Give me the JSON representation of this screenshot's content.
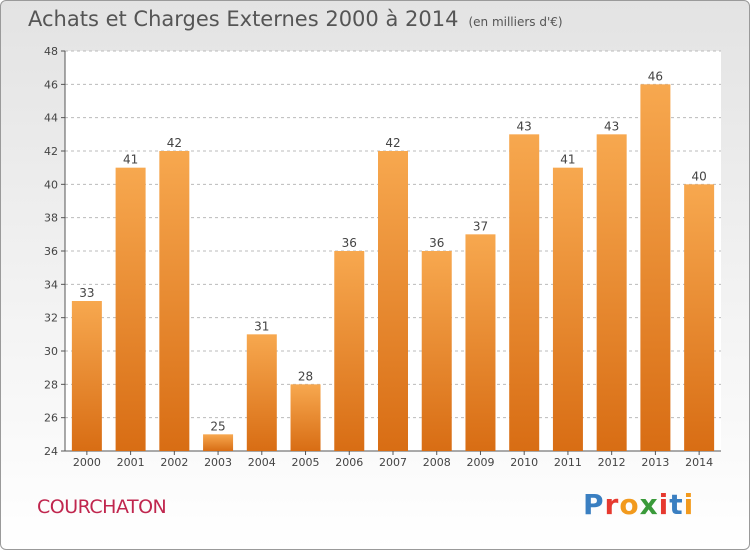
{
  "header": {
    "title": "Achats et Charges Externes 2000 à 2014",
    "unit": "(en milliers d'€)"
  },
  "footer": {
    "commune": "COURCHATON",
    "logo_text": "Proxiti",
    "logo_colors": [
      "#3a7fc1",
      "#e6392f",
      "#f29a1d",
      "#3a9a3a",
      "#e6392f",
      "#3a7fc1",
      "#f29a1d"
    ]
  },
  "colors": {
    "bar_light": "#f7a84f",
    "bar_dark": "#d86d14",
    "grid": "#bbbbbb"
  },
  "chart_data": {
    "type": "bar",
    "title": "Achats et Charges Externes 2000 à 2014",
    "subtitle": "(en milliers d'€)",
    "categories": [
      "2000",
      "2001",
      "2002",
      "2003",
      "2004",
      "2005",
      "2006",
      "2007",
      "2008",
      "2009",
      "2010",
      "2011",
      "2012",
      "2013",
      "2014"
    ],
    "values": [
      33,
      41,
      42,
      25,
      31,
      28,
      36,
      42,
      36,
      37,
      43,
      41,
      43,
      46,
      40
    ],
    "ylim": [
      24,
      48
    ],
    "yticks": [
      24,
      26,
      28,
      30,
      32,
      34,
      36,
      38,
      40,
      42,
      44,
      46,
      48
    ],
    "grid": true,
    "xlabel": "",
    "ylabel": ""
  }
}
